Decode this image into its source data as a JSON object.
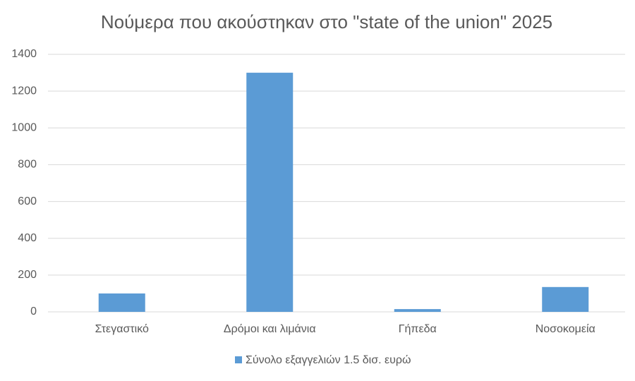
{
  "chart_data": {
    "type": "bar",
    "title": "Νούμερα που ακούστηκαν στο \"state of the union\" 2025",
    "categories": [
      "Στεγαστικό",
      "Δρόμοι και λιμάνια",
      "Γήπεδα",
      "Νοσοκομεία"
    ],
    "series": [
      {
        "name": "Σύνολο εξαγγελιών 1.5 δισ. ευρώ",
        "color": "#5b9bd5",
        "values": [
          100,
          1300,
          15,
          135
        ]
      }
    ],
    "ylim": [
      0,
      1400
    ],
    "yticks": [
      0,
      200,
      400,
      600,
      800,
      1000,
      1200,
      1400
    ],
    "grid": true,
    "legend": "bottom"
  }
}
